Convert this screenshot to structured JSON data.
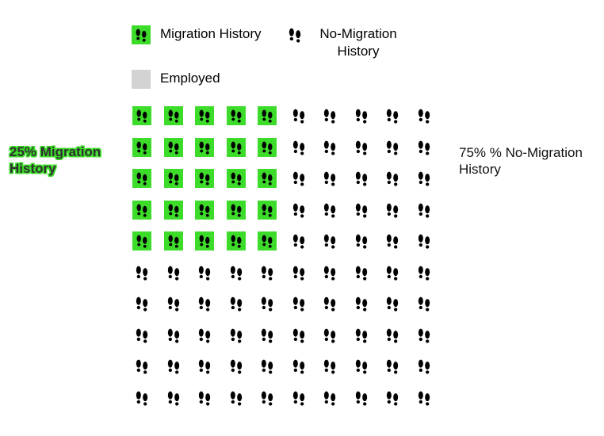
{
  "legend": {
    "migration_label": "Migration History",
    "no_migration_label": "No-Migration History",
    "employed_label": "Employed"
  },
  "callouts": {
    "left": "25% Migration History",
    "right": "75% % No-Migration History"
  },
  "colors": {
    "migration": "#3ddc2a",
    "employed": "#d3d3d3",
    "icon": "#000000"
  },
  "icon": "footprints-icon",
  "chart_data": {
    "type": "waffle",
    "rows": 10,
    "cols": 10,
    "total": 100,
    "categories": [
      "Migration History",
      "No-Migration History"
    ],
    "values": [
      25,
      75
    ],
    "percentages": [
      25,
      75
    ],
    "highlighted_block": {
      "rows": 5,
      "cols": 5
    },
    "legend": [
      "Migration History",
      "No-Migration History",
      "Employed"
    ]
  }
}
